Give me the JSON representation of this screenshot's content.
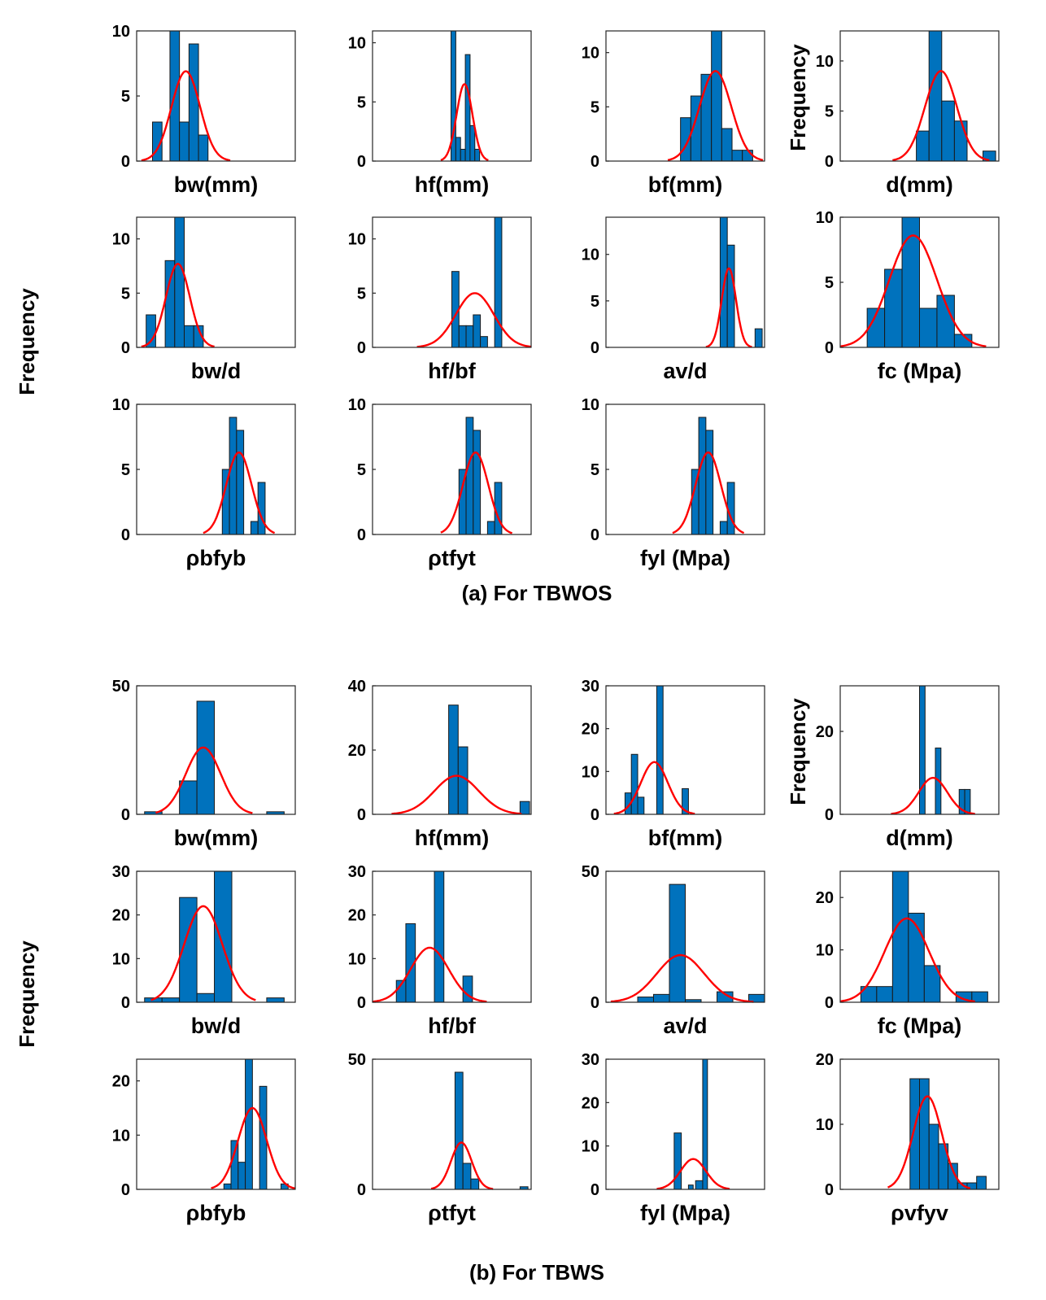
{
  "figure": {
    "captions": [
      "(a) For TBWOS",
      "(b) For TBWS"
    ],
    "global_ylabel": "Frequency",
    "colors": {
      "bar": "#0072bd",
      "fit_curve": "#ff0000"
    }
  },
  "chart_data": [
    {
      "id": "a-bw",
      "group": "a",
      "type": "bar",
      "xlabel": "bw(mm)",
      "ylabel": "",
      "ylim": [
        0,
        10
      ],
      "yticks": [
        0,
        5,
        10
      ],
      "bars": [
        {
          "x": 0.1,
          "w": 0.06,
          "v": 3
        },
        {
          "x": 0.21,
          "w": 0.06,
          "v": 10
        },
        {
          "x": 0.27,
          "w": 0.06,
          "v": 3
        },
        {
          "x": 0.33,
          "w": 0.06,
          "v": 9
        },
        {
          "x": 0.39,
          "w": 0.06,
          "v": 2
        }
      ],
      "fit": {
        "mu": 0.31,
        "sigma": 0.09,
        "peak": 6.9,
        "lo": 0.03,
        "hi": 0.59
      }
    },
    {
      "id": "a-hf",
      "group": "a",
      "type": "bar",
      "xlabel": "hf(mm)",
      "ylabel": "",
      "ylim": [
        0,
        11
      ],
      "yticks": [
        0,
        5,
        10
      ],
      "bars": [
        {
          "x": 0.495,
          "w": 0.03,
          "v": 11
        },
        {
          "x": 0.525,
          "w": 0.03,
          "v": 2
        },
        {
          "x": 0.555,
          "w": 0.03,
          "v": 1
        },
        {
          "x": 0.585,
          "w": 0.03,
          "v": 9
        },
        {
          "x": 0.615,
          "w": 0.03,
          "v": 3
        },
        {
          "x": 0.645,
          "w": 0.03,
          "v": 1
        }
      ],
      "fit": {
        "mu": 0.58,
        "sigma": 0.05,
        "peak": 6.5,
        "lo": 0.43,
        "hi": 0.73
      }
    },
    {
      "id": "a-bf",
      "group": "a",
      "type": "bar",
      "xlabel": "bf(mm)",
      "ylabel": "",
      "ylim": [
        0,
        12
      ],
      "yticks": [
        0,
        5,
        10
      ],
      "bars": [
        {
          "x": 0.47,
          "w": 0.065,
          "v": 4
        },
        {
          "x": 0.535,
          "w": 0.065,
          "v": 6
        },
        {
          "x": 0.6,
          "w": 0.065,
          "v": 8
        },
        {
          "x": 0.665,
          "w": 0.065,
          "v": 12
        },
        {
          "x": 0.73,
          "w": 0.065,
          "v": 3
        },
        {
          "x": 0.795,
          "w": 0.065,
          "v": 1
        },
        {
          "x": 0.86,
          "w": 0.065,
          "v": 1
        }
      ],
      "fit": {
        "mu": 0.69,
        "sigma": 0.1,
        "peak": 8.3,
        "lo": 0.39,
        "hi": 0.99
      }
    },
    {
      "id": "a-d",
      "group": "a",
      "type": "bar",
      "xlabel": "d(mm)",
      "ylabel": "Frequency",
      "ylim": [
        0,
        13
      ],
      "yticks": [
        0,
        5,
        10
      ],
      "bars": [
        {
          "x": 0.48,
          "w": 0.08,
          "v": 3
        },
        {
          "x": 0.56,
          "w": 0.08,
          "v": 13
        },
        {
          "x": 0.64,
          "w": 0.08,
          "v": 6
        },
        {
          "x": 0.72,
          "w": 0.08,
          "v": 4
        },
        {
          "x": 0.9,
          "w": 0.08,
          "v": 1
        }
      ],
      "fit": {
        "mu": 0.635,
        "sigma": 0.1,
        "peak": 9,
        "lo": 0.33,
        "hi": 0.94
      }
    },
    {
      "id": "a-bwd",
      "group": "a",
      "type": "bar",
      "xlabel": "bw/d",
      "ylabel": "",
      "ylim": [
        0,
        12
      ],
      "yticks": [
        0,
        5,
        10
      ],
      "bars": [
        {
          "x": 0.06,
          "w": 0.06,
          "v": 3
        },
        {
          "x": 0.18,
          "w": 0.06,
          "v": 8
        },
        {
          "x": 0.24,
          "w": 0.06,
          "v": 12
        },
        {
          "x": 0.3,
          "w": 0.06,
          "v": 2
        },
        {
          "x": 0.36,
          "w": 0.06,
          "v": 2
        }
      ],
      "fit": {
        "mu": 0.26,
        "sigma": 0.075,
        "peak": 7.7,
        "lo": 0.03,
        "hi": 0.49
      }
    },
    {
      "id": "a-hfbf",
      "group": "a",
      "type": "bar",
      "xlabel": "hf/bf",
      "ylabel": "",
      "ylim": [
        0,
        12
      ],
      "yticks": [
        0,
        5,
        10
      ],
      "bars": [
        {
          "x": 0.5,
          "w": 0.045,
          "v": 7
        },
        {
          "x": 0.545,
          "w": 0.045,
          "v": 2
        },
        {
          "x": 0.59,
          "w": 0.045,
          "v": 2
        },
        {
          "x": 0.635,
          "w": 0.045,
          "v": 3
        },
        {
          "x": 0.68,
          "w": 0.045,
          "v": 1
        },
        {
          "x": 0.77,
          "w": 0.045,
          "v": 12
        }
      ],
      "fit": {
        "mu": 0.645,
        "sigma": 0.12,
        "peak": 5,
        "lo": 0.28,
        "hi": 1.0
      }
    },
    {
      "id": "a-avd",
      "group": "a",
      "type": "bar",
      "xlabel": "av/d",
      "ylabel": "",
      "ylim": [
        0,
        14
      ],
      "yticks": [
        0,
        5,
        10
      ],
      "bars": [
        {
          "x": 0.72,
          "w": 0.045,
          "v": 14
        },
        {
          "x": 0.765,
          "w": 0.045,
          "v": 11
        },
        {
          "x": 0.94,
          "w": 0.045,
          "v": 2
        }
      ],
      "fit": {
        "mu": 0.775,
        "sigma": 0.045,
        "peak": 8.5,
        "lo": 0.63,
        "hi": 0.92
      }
    },
    {
      "id": "a-fc",
      "group": "a",
      "type": "bar",
      "xlabel": "fc (Mpa)",
      "ylabel": "",
      "ylim": [
        0,
        10
      ],
      "yticks": [
        0,
        5,
        10
      ],
      "bars": [
        {
          "x": 0.17,
          "w": 0.11,
          "v": 3
        },
        {
          "x": 0.28,
          "w": 0.11,
          "v": 6
        },
        {
          "x": 0.39,
          "w": 0.11,
          "v": 10
        },
        {
          "x": 0.5,
          "w": 0.11,
          "v": 3
        },
        {
          "x": 0.61,
          "w": 0.11,
          "v": 4
        },
        {
          "x": 0.72,
          "w": 0.11,
          "v": 1
        }
      ],
      "fit": {
        "mu": 0.46,
        "sigma": 0.15,
        "peak": 8.6,
        "lo": 0.0,
        "hi": 0.92
      }
    },
    {
      "id": "a-pbfyb",
      "group": "a",
      "type": "bar",
      "xlabel": "ρbfyb",
      "ylabel": "",
      "ylim": [
        0,
        10
      ],
      "yticks": [
        0,
        5,
        10
      ],
      "bars": [
        {
          "x": 0.54,
          "w": 0.045,
          "v": 5
        },
        {
          "x": 0.585,
          "w": 0.045,
          "v": 9
        },
        {
          "x": 0.63,
          "w": 0.045,
          "v": 8
        },
        {
          "x": 0.72,
          "w": 0.045,
          "v": 1
        },
        {
          "x": 0.765,
          "w": 0.045,
          "v": 4
        }
      ],
      "fit": {
        "mu": 0.645,
        "sigma": 0.08,
        "peak": 6.3,
        "lo": 0.42,
        "hi": 0.87
      }
    },
    {
      "id": "a-ptfyt",
      "group": "a",
      "type": "bar",
      "xlabel": "ρtfyt",
      "ylabel": "",
      "ylim": [
        0,
        10
      ],
      "yticks": [
        0,
        5,
        10
      ],
      "bars": [
        {
          "x": 0.545,
          "w": 0.045,
          "v": 5
        },
        {
          "x": 0.59,
          "w": 0.045,
          "v": 9
        },
        {
          "x": 0.635,
          "w": 0.045,
          "v": 8
        },
        {
          "x": 0.725,
          "w": 0.045,
          "v": 1
        },
        {
          "x": 0.77,
          "w": 0.045,
          "v": 4
        }
      ],
      "fit": {
        "mu": 0.65,
        "sigma": 0.08,
        "peak": 6.3,
        "lo": 0.43,
        "hi": 0.88
      }
    },
    {
      "id": "a-fyl",
      "group": "a",
      "type": "bar",
      "xlabel": "fyl (Mpa)",
      "ylabel": "",
      "ylim": [
        0,
        10
      ],
      "yticks": [
        0,
        5,
        10
      ],
      "bars": [
        {
          "x": 0.54,
          "w": 0.045,
          "v": 5
        },
        {
          "x": 0.585,
          "w": 0.045,
          "v": 9
        },
        {
          "x": 0.63,
          "w": 0.045,
          "v": 8
        },
        {
          "x": 0.72,
          "w": 0.045,
          "v": 1
        },
        {
          "x": 0.765,
          "w": 0.045,
          "v": 4
        }
      ],
      "fit": {
        "mu": 0.645,
        "sigma": 0.08,
        "peak": 6.3,
        "lo": 0.42,
        "hi": 0.87
      }
    },
    {
      "id": "b-bw",
      "group": "b",
      "type": "bar",
      "xlabel": "bw(mm)",
      "ylabel": "",
      "ylim": [
        0,
        50
      ],
      "yticks": [
        0,
        50
      ],
      "bars": [
        {
          "x": 0.05,
          "w": 0.11,
          "v": 1
        },
        {
          "x": 0.27,
          "w": 0.11,
          "v": 13
        },
        {
          "x": 0.38,
          "w": 0.11,
          "v": 44
        },
        {
          "x": 0.82,
          "w": 0.11,
          "v": 1
        }
      ],
      "fit": {
        "mu": 0.42,
        "sigma": 0.11,
        "peak": 26,
        "lo": 0.12,
        "hi": 0.73
      }
    },
    {
      "id": "b-hf",
      "group": "b",
      "type": "bar",
      "xlabel": "hf(mm)",
      "ylabel": "",
      "ylim": [
        0,
        40
      ],
      "yticks": [
        0,
        20,
        40
      ],
      "bars": [
        {
          "x": 0.48,
          "w": 0.06,
          "v": 34
        },
        {
          "x": 0.54,
          "w": 0.06,
          "v": 21
        },
        {
          "x": 0.93,
          "w": 0.06,
          "v": 4
        }
      ],
      "fit": {
        "mu": 0.53,
        "sigma": 0.14,
        "peak": 12,
        "lo": 0.12,
        "hi": 0.94
      }
    },
    {
      "id": "b-bf",
      "group": "b",
      "type": "bar",
      "xlabel": "bf(mm)",
      "ylabel": "",
      "ylim": [
        0,
        30
      ],
      "yticks": [
        0,
        10,
        20,
        30
      ],
      "bars": [
        {
          "x": 0.12,
          "w": 0.04,
          "v": 5
        },
        {
          "x": 0.16,
          "w": 0.04,
          "v": 14
        },
        {
          "x": 0.2,
          "w": 0.04,
          "v": 4
        },
        {
          "x": 0.32,
          "w": 0.04,
          "v": 30
        },
        {
          "x": 0.48,
          "w": 0.04,
          "v": 6
        }
      ],
      "fit": {
        "mu": 0.305,
        "sigma": 0.085,
        "peak": 12.2,
        "lo": 0.05,
        "hi": 0.56
      }
    },
    {
      "id": "b-d",
      "group": "b",
      "type": "bar",
      "xlabel": "d(mm)",
      "ylabel": "Frequency",
      "ylim": [
        0,
        31
      ],
      "yticks": [
        0,
        20
      ],
      "bars": [
        {
          "x": 0.5,
          "w": 0.035,
          "v": 31
        },
        {
          "x": 0.6,
          "w": 0.035,
          "v": 16
        },
        {
          "x": 0.75,
          "w": 0.035,
          "v": 6
        },
        {
          "x": 0.785,
          "w": 0.035,
          "v": 6
        }
      ],
      "fit": {
        "mu": 0.585,
        "sigma": 0.09,
        "peak": 8.8,
        "lo": 0.32,
        "hi": 0.85
      }
    },
    {
      "id": "b-bwd",
      "group": "b",
      "type": "bar",
      "xlabel": "bw/d",
      "ylabel": "",
      "ylim": [
        0,
        30
      ],
      "yticks": [
        0,
        10,
        20,
        30
      ],
      "bars": [
        {
          "x": 0.05,
          "w": 0.11,
          "v": 1
        },
        {
          "x": 0.16,
          "w": 0.11,
          "v": 1
        },
        {
          "x": 0.27,
          "w": 0.11,
          "v": 24
        },
        {
          "x": 0.38,
          "w": 0.11,
          "v": 2
        },
        {
          "x": 0.49,
          "w": 0.11,
          "v": 30
        },
        {
          "x": 0.82,
          "w": 0.11,
          "v": 1
        }
      ],
      "fit": {
        "mu": 0.42,
        "sigma": 0.12,
        "peak": 22,
        "lo": 0.09,
        "hi": 0.75
      }
    },
    {
      "id": "b-hfbf",
      "group": "b",
      "type": "bar",
      "xlabel": "hf/bf",
      "ylabel": "",
      "ylim": [
        0,
        30
      ],
      "yticks": [
        0,
        10,
        20,
        30
      ],
      "bars": [
        {
          "x": 0.15,
          "w": 0.06,
          "v": 5
        },
        {
          "x": 0.21,
          "w": 0.06,
          "v": 18
        },
        {
          "x": 0.39,
          "w": 0.06,
          "v": 30
        },
        {
          "x": 0.57,
          "w": 0.06,
          "v": 6
        }
      ],
      "fit": {
        "mu": 0.36,
        "sigma": 0.12,
        "peak": 12.5,
        "lo": 0.0,
        "hi": 0.72
      }
    },
    {
      "id": "b-avd",
      "group": "b",
      "type": "bar",
      "xlabel": "av/d",
      "ylabel": "",
      "ylim": [
        0,
        50
      ],
      "yticks": [
        0,
        50
      ],
      "bars": [
        {
          "x": 0.2,
          "w": 0.1,
          "v": 2
        },
        {
          "x": 0.3,
          "w": 0.1,
          "v": 3
        },
        {
          "x": 0.4,
          "w": 0.1,
          "v": 45
        },
        {
          "x": 0.5,
          "w": 0.1,
          "v": 1
        },
        {
          "x": 0.7,
          "w": 0.1,
          "v": 4
        },
        {
          "x": 0.9,
          "w": 0.1,
          "v": 3
        }
      ],
      "fit": {
        "mu": 0.47,
        "sigma": 0.15,
        "peak": 18,
        "lo": 0.03,
        "hi": 0.93
      }
    },
    {
      "id": "b-fc",
      "group": "b",
      "type": "bar",
      "xlabel": "fc (Mpa)",
      "ylabel": "",
      "ylim": [
        0,
        25
      ],
      "yticks": [
        0,
        10,
        20
      ],
      "bars": [
        {
          "x": 0.13,
          "w": 0.1,
          "v": 3
        },
        {
          "x": 0.23,
          "w": 0.1,
          "v": 3
        },
        {
          "x": 0.33,
          "w": 0.1,
          "v": 25
        },
        {
          "x": 0.43,
          "w": 0.1,
          "v": 17
        },
        {
          "x": 0.53,
          "w": 0.1,
          "v": 7
        },
        {
          "x": 0.73,
          "w": 0.1,
          "v": 2
        },
        {
          "x": 0.83,
          "w": 0.1,
          "v": 2
        }
      ],
      "fit": {
        "mu": 0.42,
        "sigma": 0.14,
        "peak": 16,
        "lo": 0.0,
        "hi": 0.85
      }
    },
    {
      "id": "b-pbfyb",
      "group": "b",
      "type": "bar",
      "xlabel": "ρbfyb",
      "ylabel": "",
      "ylim": [
        0,
        24
      ],
      "yticks": [
        0,
        10,
        20
      ],
      "bars": [
        {
          "x": 0.55,
          "w": 0.045,
          "v": 1
        },
        {
          "x": 0.595,
          "w": 0.045,
          "v": 9
        },
        {
          "x": 0.64,
          "w": 0.045,
          "v": 5
        },
        {
          "x": 0.685,
          "w": 0.045,
          "v": 24
        },
        {
          "x": 0.775,
          "w": 0.045,
          "v": 19
        },
        {
          "x": 0.91,
          "w": 0.045,
          "v": 1
        }
      ],
      "fit": {
        "mu": 0.73,
        "sigma": 0.09,
        "peak": 15,
        "lo": 0.47,
        "hi": 1.0
      }
    },
    {
      "id": "b-ptfyt",
      "group": "b",
      "type": "bar",
      "xlabel": "ρtfyt",
      "ylabel": "",
      "ylim": [
        0,
        50
      ],
      "yticks": [
        0,
        50
      ],
      "bars": [
        {
          "x": 0.52,
          "w": 0.05,
          "v": 45
        },
        {
          "x": 0.57,
          "w": 0.05,
          "v": 10
        },
        {
          "x": 0.62,
          "w": 0.05,
          "v": 4
        },
        {
          "x": 0.93,
          "w": 0.05,
          "v": 1
        }
      ],
      "fit": {
        "mu": 0.56,
        "sigma": 0.065,
        "peak": 18,
        "lo": 0.37,
        "hi": 0.76
      }
    },
    {
      "id": "b-fyl",
      "group": "b",
      "type": "bar",
      "xlabel": "fyl (Mpa)",
      "ylabel": "",
      "ylim": [
        0,
        30
      ],
      "yticks": [
        0,
        10,
        20,
        30
      ],
      "bars": [
        {
          "x": 0.43,
          "w": 0.045,
          "v": 13
        },
        {
          "x": 0.52,
          "w": 0.03,
          "v": 1
        },
        {
          "x": 0.565,
          "w": 0.045,
          "v": 2
        },
        {
          "x": 0.61,
          "w": 0.03,
          "v": 30
        }
      ],
      "fit": {
        "mu": 0.55,
        "sigma": 0.08,
        "peak": 7,
        "lo": 0.32,
        "hi": 0.78
      }
    },
    {
      "id": "b-pvfyv",
      "group": "b",
      "type": "bar",
      "xlabel": "ρvfyv",
      "ylabel": "",
      "ylim": [
        0,
        20
      ],
      "yticks": [
        0,
        10,
        20
      ],
      "bars": [
        {
          "x": 0.44,
          "w": 0.06,
          "v": 17
        },
        {
          "x": 0.5,
          "w": 0.06,
          "v": 17
        },
        {
          "x": 0.56,
          "w": 0.06,
          "v": 10
        },
        {
          "x": 0.62,
          "w": 0.06,
          "v": 7
        },
        {
          "x": 0.68,
          "w": 0.06,
          "v": 4
        },
        {
          "x": 0.74,
          "w": 0.06,
          "v": 1
        },
        {
          "x": 0.8,
          "w": 0.06,
          "v": 1
        },
        {
          "x": 0.86,
          "w": 0.06,
          "v": 2
        }
      ],
      "fit": {
        "mu": 0.55,
        "sigma": 0.09,
        "peak": 14.3,
        "lo": 0.3,
        "hi": 0.82
      }
    }
  ]
}
